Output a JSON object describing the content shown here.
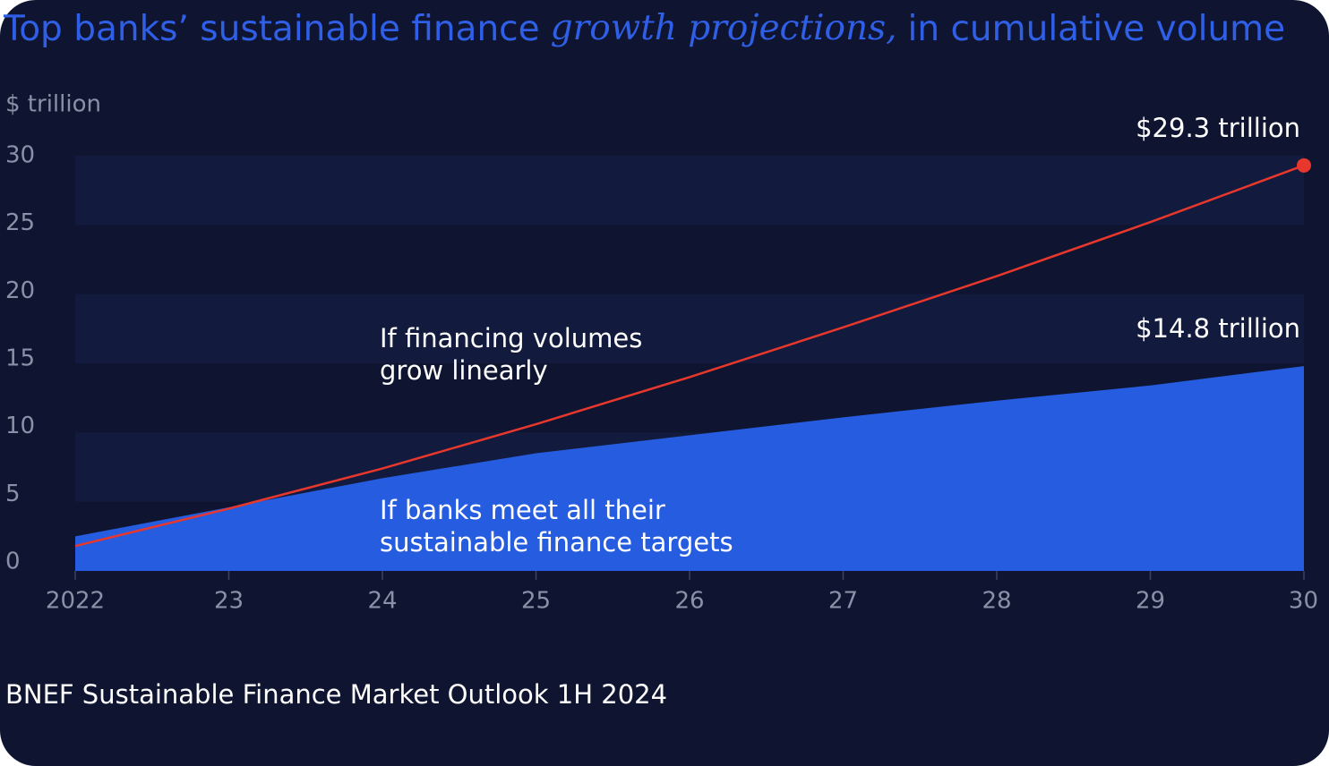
{
  "chart_data": {
    "type": "area-line",
    "title": [
      "Top banks’ sustainable finance",
      "growth projections,",
      "in cumulative volume"
    ],
    "y_label": "$ trillion",
    "source": "BNEF Sustainable Finance Market Outlook 1H 2024",
    "x": [
      2022,
      2023,
      2024,
      2025,
      2026,
      2027,
      2028,
      2029,
      2030
    ],
    "series": [
      {
        "name": [
          "If financing volumes",
          "grow linearly"
        ],
        "color": "#e8372c",
        "style": "line",
        "values": [
          1.8,
          4.5,
          7.4,
          10.6,
          14.0,
          17.6,
          21.3,
          25.2,
          29.3
        ],
        "end_label": "$29.3 trillion"
      },
      {
        "name": [
          "If banks meet all their",
          "sustainable finance targets"
        ],
        "color": "#255ce0",
        "style": "area",
        "values": [
          2.5,
          4.6,
          6.7,
          8.5,
          9.8,
          11.1,
          12.3,
          13.4,
          14.8
        ],
        "end_label": "$14.8 trillion"
      }
    ],
    "xlim": [
      2022,
      2030
    ],
    "xticks": [
      2022,
      {
        "value": 2023,
        "label": "23"
      },
      {
        "value": 2024,
        "label": "24"
      },
      {
        "value": 2025,
        "label": "25"
      },
      {
        "value": 2026,
        "label": "26"
      },
      {
        "value": 2027,
        "label": "27"
      },
      {
        "value": 2028,
        "label": "28"
      },
      {
        "value": 2029,
        "label": "29"
      },
      {
        "value": 2030,
        "label": "30"
      }
    ],
    "ylim": [
      0,
      30
    ],
    "yticks": [
      0,
      5,
      10,
      15,
      20,
      25,
      30
    ],
    "grid": "bands"
  }
}
